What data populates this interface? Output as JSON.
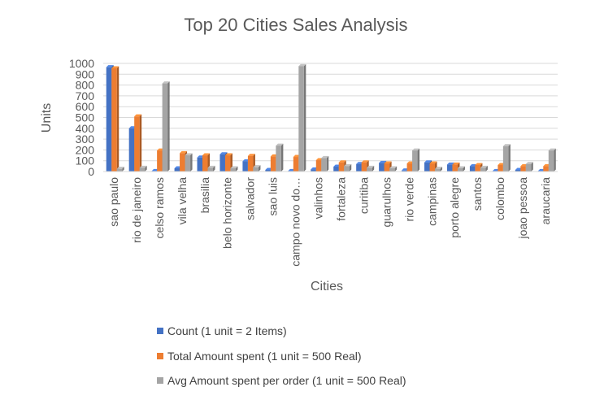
{
  "chart_data": {
    "type": "bar",
    "title": "Top 20 Cities Sales Analysis",
    "xlabel": "Cities",
    "ylabel": "Units",
    "ylim": [
      0,
      1000
    ],
    "yticks": [
      0,
      100,
      200,
      300,
      400,
      500,
      600,
      700,
      800,
      900,
      1000
    ],
    "grid": true,
    "legend_position": "bottom",
    "categories": [
      "sao paulo",
      "rio de janeiro",
      "celso ramos",
      "vila velha",
      "brasilia",
      "belo horizonte",
      "salvador",
      "sao luis",
      "campo novo do…",
      "valinhos",
      "fortaleza",
      "curitiba",
      "guarulhos",
      "rio verde",
      "campinas",
      "porto alegre",
      "santos",
      "colombo",
      "joao pessoa",
      "araucaria"
    ],
    "series": [
      {
        "name": "Count (1 unit = 2 Items)",
        "color": "#4472c4",
        "values": [
          965,
          400,
          5,
          30,
          130,
          160,
          95,
          15,
          5,
          20,
          45,
          70,
          80,
          10,
          85,
          65,
          50,
          5,
          15,
          5
        ]
      },
      {
        "name": "Total Amount spent (1 unit = 500 Real)",
        "color": "#ed7d31",
        "values": [
          955,
          510,
          195,
          170,
          150,
          150,
          145,
          140,
          135,
          105,
          85,
          85,
          75,
          75,
          75,
          65,
          60,
          60,
          50,
          50
        ]
      },
      {
        "name": "Avg Amount spent per order (1 unit = 500 Real)",
        "color": "#a5a5a5",
        "values": [
          25,
          35,
          815,
          150,
          35,
          30,
          40,
          240,
          975,
          125,
          50,
          35,
          30,
          195,
          25,
          30,
          35,
          235,
          70,
          195
        ]
      }
    ]
  }
}
